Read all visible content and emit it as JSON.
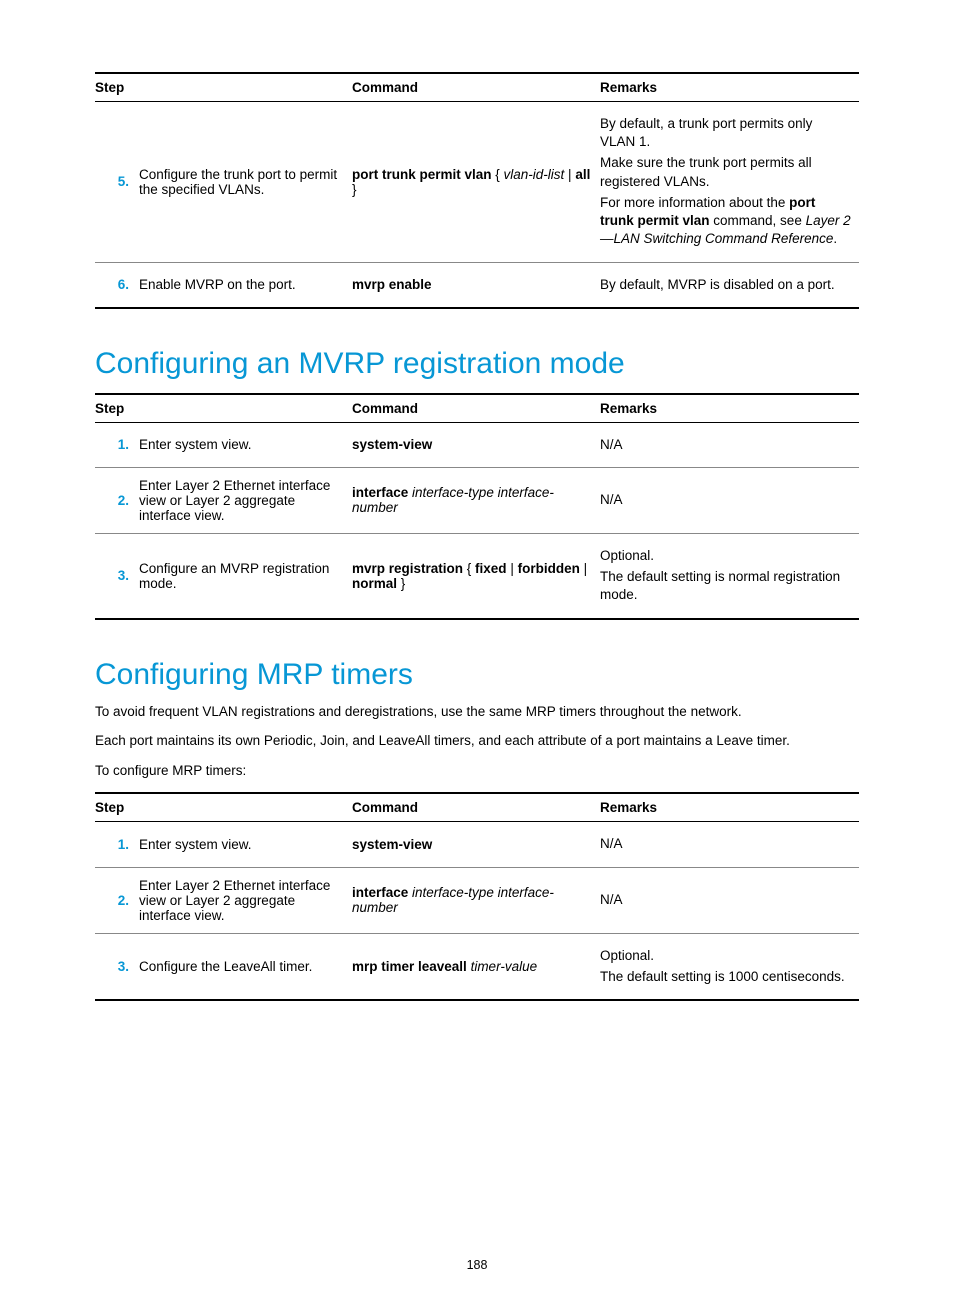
{
  "page_number": "188",
  "colors": {
    "accent": "#0797d5",
    "text": "#000000",
    "rule": "#000000",
    "rule_light": "#888888"
  },
  "typography": {
    "body_size_pt": 10,
    "heading_size_pt": 23,
    "font_family": "Arial"
  },
  "table1": {
    "headers": {
      "step": "Step",
      "command": "Command",
      "remarks": "Remarks"
    },
    "rows": [
      {
        "num": "5.",
        "step": "Configure the trunk port to permit the specified VLANs.",
        "cmd_bold1": "port trunk permit vlan",
        "cmd_plain1": " { ",
        "cmd_ital1": "vlan-id-list",
        "cmd_plain2": " | ",
        "cmd_bold2": "all",
        "cmd_plain3": " }",
        "rem_p1": "By default, a trunk port permits only VLAN 1.",
        "rem_p2": "Make sure the trunk port permits all registered VLANs.",
        "rem_p3a": "For more information about the ",
        "rem_p3b": "port trunk permit vlan",
        "rem_p3c": " command, see ",
        "rem_p3d": "Layer 2—LAN Switching Command Reference",
        "rem_p3e": "."
      },
      {
        "num": "6.",
        "step": "Enable MVRP on the port.",
        "cmd_bold1": "mvrp enable",
        "rem_p1": "By default, MVRP is disabled on a port."
      }
    ]
  },
  "heading2": "Configuring an MVRP registration mode",
  "table2": {
    "headers": {
      "step": "Step",
      "command": "Command",
      "remarks": "Remarks"
    },
    "rows": [
      {
        "num": "1.",
        "step": "Enter system view.",
        "cmd_bold1": "system-view",
        "rem_p1": "N/A"
      },
      {
        "num": "2.",
        "step": "Enter Layer 2 Ethernet interface view or Layer 2 aggregate interface view.",
        "cmd_bold1": "interface",
        "cmd_ital1": " interface-type interface-number",
        "rem_p1": "N/A"
      },
      {
        "num": "3.",
        "step": "Configure an MVRP registration mode.",
        "cmd_bold1": "mvrp registration",
        "cmd_plain1": " { ",
        "cmd_bold2": "fixed",
        "cmd_plain2": " | ",
        "cmd_bold3": "forbidden",
        "cmd_plain3": " | ",
        "cmd_bold4": "normal",
        "cmd_plain4": " }",
        "rem_p1": "Optional.",
        "rem_p2": "The default setting is normal registration mode."
      }
    ]
  },
  "heading3": "Configuring MRP timers",
  "body3_p1": "To avoid frequent VLAN registrations and deregistrations, use the same MRP timers throughout the network.",
  "body3_p2": "Each port maintains its own Periodic, Join, and LeaveAll timers, and each attribute of a port maintains a Leave timer.",
  "body3_p3": "To configure MRP timers:",
  "table3": {
    "headers": {
      "step": "Step",
      "command": "Command",
      "remarks": "Remarks"
    },
    "rows": [
      {
        "num": "1.",
        "step": "Enter system view.",
        "cmd_bold1": "system-view",
        "rem_p1": "N/A"
      },
      {
        "num": "2.",
        "step": "Enter Layer 2 Ethernet interface view or Layer 2 aggregate interface view.",
        "cmd_bold1": "interface",
        "cmd_ital1": " interface-type interface-number",
        "rem_p1": "N/A"
      },
      {
        "num": "3.",
        "step": "Configure the LeaveAll timer.",
        "cmd_bold1": "mrp timer leaveall",
        "cmd_ital1": " timer-value",
        "rem_p1": "Optional.",
        "rem_p2": "The default setting is 1000 centiseconds."
      }
    ]
  }
}
